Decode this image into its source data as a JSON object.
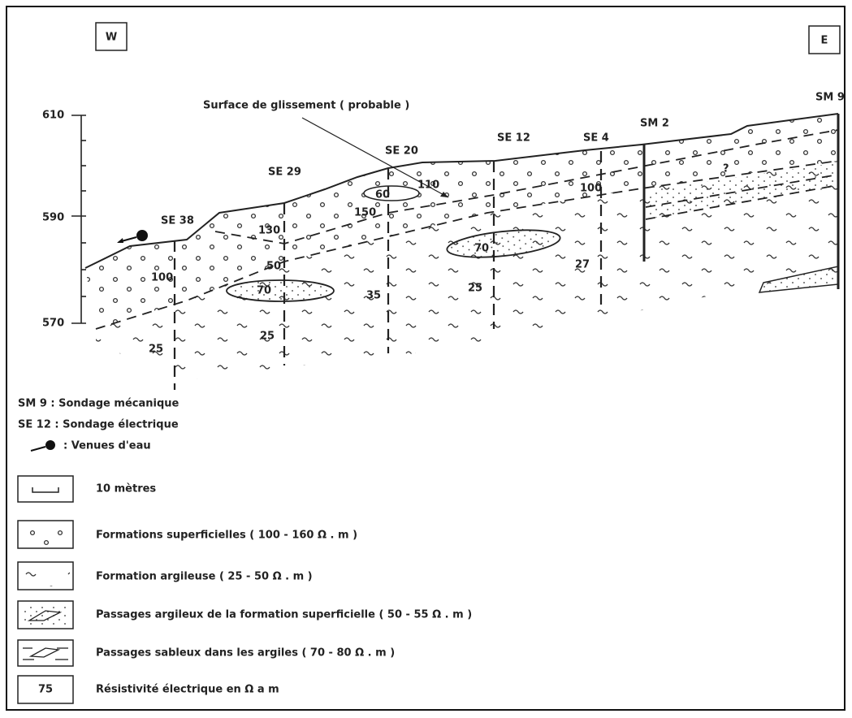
{
  "orientation": {
    "west": "W",
    "east": "E"
  },
  "elevation_axis": [
    "610",
    "590",
    "570"
  ],
  "slip_surface_label": "Surface de glissement ( probable )",
  "soundings": [
    "SE 38",
    "SE 29",
    "SE 20",
    "SE 12",
    "SE 4",
    "SM 2",
    "SM 9"
  ],
  "resistivities": [
    "100",
    "130",
    "50",
    "70",
    "25",
    "25",
    "60",
    "150",
    "35",
    "110",
    "70",
    "25",
    "100",
    "27",
    "?"
  ],
  "legend": {
    "mechanical": "SM 9 : Sondage mécanique",
    "electrical": "SE 12 : Sondage électrique",
    "water": ": Venues d'eau",
    "items": [
      "10 mètres",
      "Formations superficielles ( 100 - 160 Ω . m )",
      "Formation argileuse ( 25 - 50 Ω . m )",
      "Passages argileux de la formation superficielle ( 50 - 55 Ω . m )",
      "Passages sableux dans les argiles ( 70 - 80 Ω . m )",
      "Résistivité électrique en Ω a m"
    ],
    "resistivity_sample": "75"
  }
}
